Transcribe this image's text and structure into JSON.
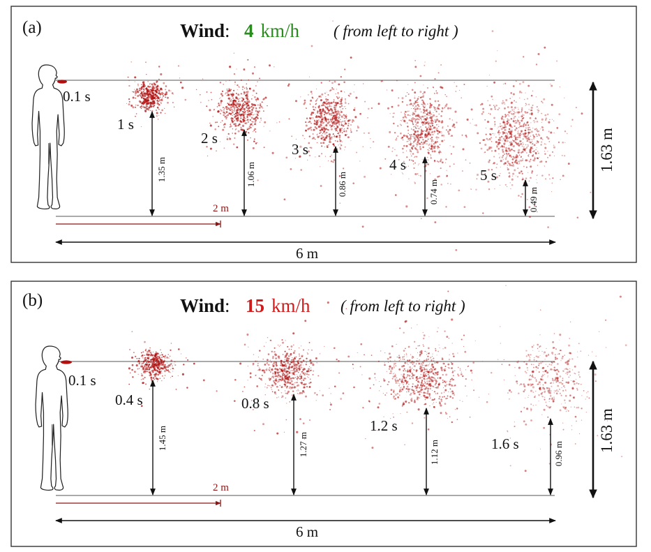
{
  "panels": [
    {
      "label": "(a)",
      "title": {
        "word": "Wind",
        "colon": ":",
        "speed_value": "4",
        "speed_unit": "km/h",
        "direction": "( from left to right )",
        "speed_color": "#2a8c1f"
      },
      "mouth_time": "0.1 s",
      "clouds": [
        {
          "time": "1 s",
          "height": "1.35 m"
        },
        {
          "time": "2 s",
          "height": "1.06 m"
        },
        {
          "time": "3 s",
          "height": "0.86 m"
        },
        {
          "time": "4 s",
          "height": "0.74 m"
        },
        {
          "time": "5 s",
          "height": "0.49 m"
        }
      ],
      "person_height": "1.63 m",
      "marker_distance": "2 m",
      "total_distance": "6 m"
    },
    {
      "label": "(b)",
      "title": {
        "word": "Wind",
        "colon": ":",
        "speed_value": "15",
        "speed_unit": "km/h",
        "direction": "( from left to right )",
        "speed_color": "#d11a1a"
      },
      "mouth_time": "0.1 s",
      "clouds": [
        {
          "time": "0.4 s",
          "height": "1.45 m"
        },
        {
          "time": "0.8 s",
          "height": "1.27 m"
        },
        {
          "time": "1.2 s",
          "height": "1.12 m"
        },
        {
          "time": "1.6 s",
          "height": "0.96 m"
        }
      ],
      "person_height": "1.63 m",
      "marker_distance": "2 m",
      "total_distance": "6 m"
    }
  ],
  "colors": {
    "droplet": "#b01010",
    "marker": "#8e1515"
  }
}
